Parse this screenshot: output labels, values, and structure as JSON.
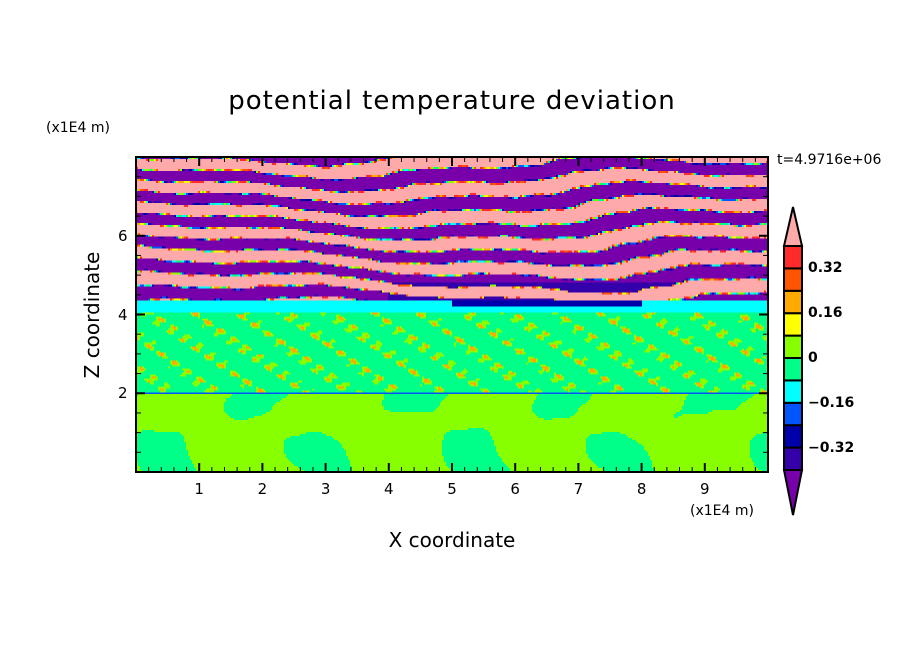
{
  "chart_data": {
    "type": "heatmap",
    "subtype": "filled-contour",
    "title": "potential temperature deviation",
    "xlabel": "X coordinate",
    "ylabel": "Z coordinate",
    "x_units": "(x1E4 m)",
    "y_units": "(x1E4 m)",
    "xlim": [
      0,
      10
    ],
    "ylim": [
      0,
      8
    ],
    "xticks": [
      "1",
      "2",
      "3",
      "4",
      "5",
      "6",
      "7",
      "8",
      "9"
    ],
    "yticks": [
      "2",
      "4",
      "6"
    ],
    "time_label": "t=4.9716e+06",
    "colorbar": {
      "levels": [
        -0.4,
        -0.32,
        -0.24,
        -0.16,
        -0.08,
        0,
        0.08,
        0.16,
        0.24,
        0.32,
        0.4
      ],
      "labels": [
        "0.32",
        "0.16",
        "0",
        "−0.16",
        "−0.32"
      ],
      "label_values": [
        0.32,
        0.16,
        0,
        -0.16,
        -0.32
      ],
      "colors_low_to_high": [
        "#7700aa",
        "#3300aa",
        "#0000aa",
        "#0055ff",
        "#00ffff",
        "#00ff88",
        "#88ff00",
        "#ffff00",
        "#ffaa00",
        "#ff5500",
        "#ff2a2a",
        "#ffaaaa"
      ],
      "extend": "both"
    }
  }
}
